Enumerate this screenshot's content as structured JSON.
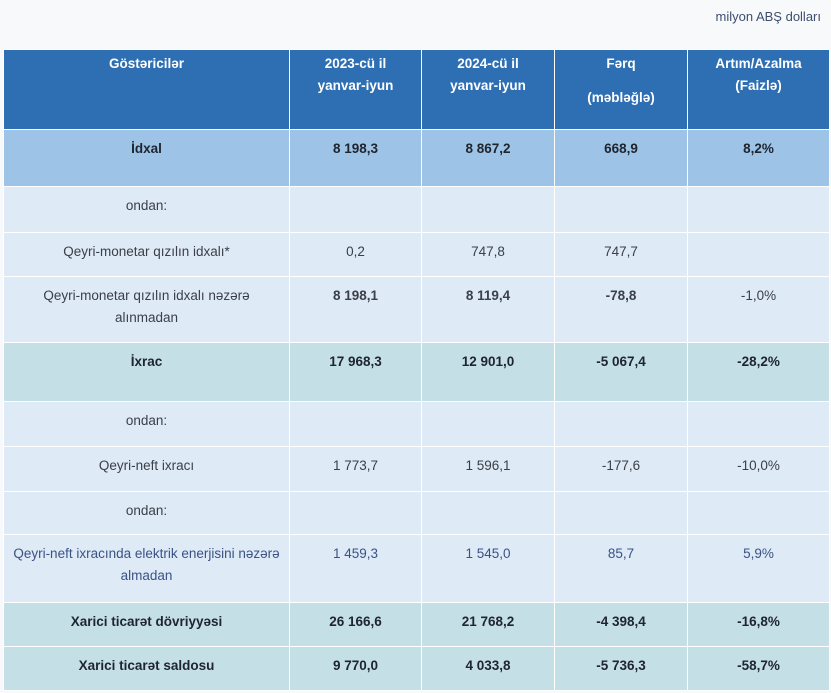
{
  "unit_label": "milyon ABŞ dolları",
  "headers": [
    "Göstəricilər",
    "2023-cü il yanvar-iyun",
    "2024-cü il yanvar-iyun",
    "Fərq (məbləğlə)",
    "Artım/Azalma (Faizlə)"
  ],
  "header_lines": {
    "c0": [
      "Göstəricilər"
    ],
    "c1": [
      "2023-cü il",
      "yanvar-iyun"
    ],
    "c2": [
      "2024-cü il",
      "yanvar-iyun"
    ],
    "c3": [
      "Fərq",
      "(məbləğlə)"
    ],
    "c4": [
      "Artım/Azalma",
      "(Faizlə)"
    ]
  },
  "rows": [
    {
      "label": "İdxal",
      "v2023": "8 198,3",
      "v2024": "8 867,2",
      "diff": "668,9",
      "pct": "8,2%"
    },
    {
      "label": "ondan:",
      "v2023": "",
      "v2024": "",
      "diff": "",
      "pct": ""
    },
    {
      "label": "Qeyri-monetar qızılın idxalı*",
      "v2023": "0,2",
      "v2024": "747,8",
      "diff": "747,7",
      "pct": ""
    },
    {
      "label": "Qeyri-monetar qızılın idxalı nəzərə alınmadan",
      "v2023": "8 198,1",
      "v2024": "8 119,4",
      "diff": "-78,8",
      "pct": "-1,0%"
    },
    {
      "label": "İxrac",
      "v2023": "17 968,3",
      "v2024": "12 901,0",
      "diff": "-5 067,4",
      "pct": "-28,2%"
    },
    {
      "label": "ondan:",
      "v2023": "",
      "v2024": "",
      "diff": "",
      "pct": ""
    },
    {
      "label": "Qeyri-neft ixracı",
      "v2023": "1 773,7",
      "v2024": "1 596,1",
      "diff": "-177,6",
      "pct": "-10,0%"
    },
    {
      "label": "ondan:",
      "v2023": "",
      "v2024": "",
      "diff": "",
      "pct": ""
    },
    {
      "label": "Qeyri-neft ixracında elektrik enerjisini nəzərə almadan",
      "v2023": "1 459,3",
      "v2024": "1 545,0",
      "diff": "85,7",
      "pct": "5,9%"
    },
    {
      "label": "Xarici ticarət dövriyyəsi",
      "v2023": "26 166,6",
      "v2024": "21 768,2",
      "diff": "-4 398,4",
      "pct": "-16,8%"
    },
    {
      "label": "Xarici ticarət saldosu",
      "v2023": "9 770,0",
      "v2024": "4 033,8",
      "diff": "-5 736,3",
      "pct": "-58,7%"
    }
  ],
  "colors": {
    "header": "#2e6fb3",
    "highlight": "#9dc3e6",
    "light": "#deeaf6",
    "teal": "#c5dfe6",
    "negative": "#b3262b"
  }
}
